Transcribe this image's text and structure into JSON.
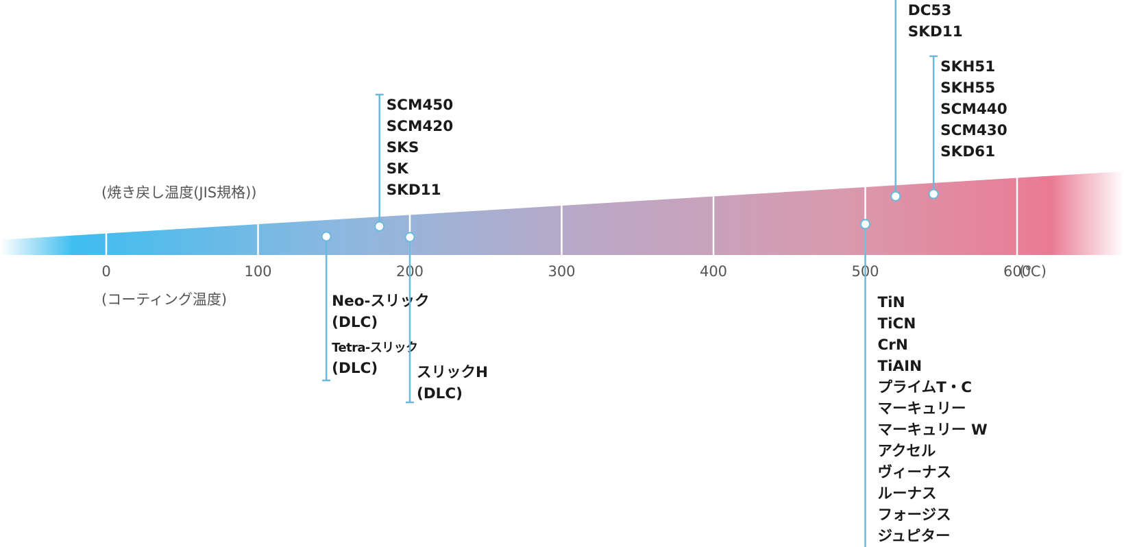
{
  "colors": {
    "scale_start": "#3ebdef",
    "scale_mid": "#b6a9c8",
    "scale_end": "#ea7a94",
    "leader_line": "#6ab8dc",
    "callout_text": "#1a1a1a",
    "axis_text": "#555555"
  },
  "axis": {
    "ticks": [
      "0",
      "100",
      "200",
      "300",
      "400",
      "500",
      "600"
    ],
    "unit": "(℃)",
    "upper_caption": "(焼き戻し温度(JIS規格))",
    "lower_caption": "(コーティング温度)"
  },
  "upper_callouts": [
    {
      "id": "scm450-group",
      "temperature": 180,
      "labels": [
        "SCM450",
        "SCM420",
        "SKS",
        "SK",
        "SKD11"
      ]
    },
    {
      "id": "dc53-group",
      "temperature": 520,
      "labels": [
        "DC53",
        "SKD11"
      ]
    },
    {
      "id": "skh51-group",
      "temperature": 545,
      "labels": [
        "SKH51",
        "SKH55",
        "SCM440",
        "SCM430",
        "SKD61"
      ]
    }
  ],
  "lower_callouts": [
    {
      "id": "neo-slick-group",
      "temperature": 145,
      "labels": [
        "Neo-スリック",
        "(DLC)",
        "Tetra-スリック",
        "(DLC)"
      ]
    },
    {
      "id": "slick-h-group",
      "temperature": 200,
      "labels": [
        "スリックH",
        "(DLC)"
      ]
    },
    {
      "id": "tin-group",
      "temperature": 500,
      "labels": [
        "TiN",
        "TiCN",
        "CrN",
        "TiAIN",
        "プライムT・C",
        "マーキュリー",
        "マーキュリー W",
        "アクセル",
        "ヴィーナス",
        "ルーナス",
        "フォージス",
        "ジュピター"
      ]
    }
  ]
}
